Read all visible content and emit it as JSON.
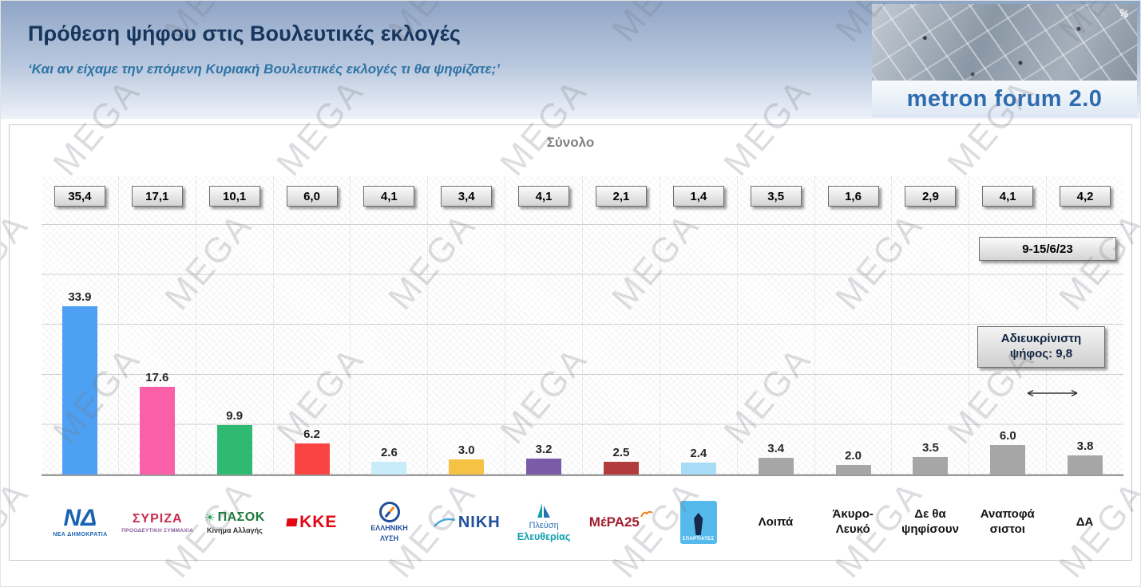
{
  "header": {
    "title": "Πρόθεση ψήφου στις Βουλευτικές εκλογές",
    "subtitle": "‘Και αν είχαμε την επόμενη Κυριακή Βουλευτικές εκλογές τι θα ψηφίζατε;’",
    "brand": "metron forum 2.0",
    "percent_mark": "%"
  },
  "watermark": {
    "text": "MEGA"
  },
  "chart": {
    "title": "Σύνολο",
    "date_box": "9-15/6/23",
    "undecided_line1": "Αδιευκρίνιστη",
    "undecided_line2": "ψήφος: 9,8"
  },
  "chart_data": {
    "type": "bar",
    "title": "Σύνολο",
    "survey_period": "9-15/6/23",
    "note": "Αδιευκρίνιστη ψήφος: 9,8",
    "categories": [
      "ΝΕΑ ΔΗΜΟΚΡΑΤΙΑ",
      "ΣΥΡΙΖΑ",
      "ΠΑΣΟΚ",
      "ΚΚΕ",
      "ΕΛΛΗΝΙΚΗ ΛΥΣΗ",
      "ΝΙΚΗ",
      "ΠΛΕΥΣΗ ΕΛΕΥΘΕΡΙΑΣ",
      "ΜέΡΑ25",
      "ΣΠΑΡΤΙΑΤΕΣ",
      "Λοιπά",
      "Άκυρο-Λευκό",
      "Δε θα ψηφίσουν",
      "Αναποφάσιστοι",
      "ΔΑ"
    ],
    "series": [
      {
        "name": "top_boxes",
        "values": [
          35.4,
          17.1,
          10.1,
          6.0,
          4.1,
          3.4,
          4.1,
          2.1,
          1.4,
          3.5,
          1.6,
          2.9,
          4.1,
          4.2
        ],
        "labels": [
          "35,4",
          "17,1",
          "10,1",
          "6,0",
          "4,1",
          "3,4",
          "4,1",
          "2,1",
          "1,4",
          "3,5",
          "1,6",
          "2,9",
          "4,1",
          "4,2"
        ]
      },
      {
        "name": "bars",
        "values": [
          33.9,
          17.6,
          9.9,
          6.2,
          2.6,
          3.0,
          3.2,
          2.5,
          2.4,
          3.4,
          2.0,
          3.5,
          6.0,
          3.8
        ],
        "labels": [
          "33.9",
          "17.6",
          "9.9",
          "6.2",
          "2.6",
          "3.0",
          "3.2",
          "2.5",
          "2.4",
          "3.4",
          "2.0",
          "3.5",
          "6.0",
          "3.8"
        ]
      }
    ],
    "bar_colors": [
      "#4da0f2",
      "#fa60a7",
      "#2eba70",
      "#fa4343",
      "#c9ecfa",
      "#f5c243",
      "#7b5ba8",
      "#b23b3b",
      "#a8dcf6",
      "#a6a6a6",
      "#a6a6a6",
      "#a6a6a6",
      "#a6a6a6",
      "#a6a6a6"
    ],
    "ylim": [
      0,
      60
    ],
    "grid": "horizontal",
    "legend": "none"
  },
  "parties": [
    {
      "short": "ΝΔ",
      "sub": "ΝΕΑ ΔΗΜΟΚΡΑΤΙΑ"
    },
    {
      "short": "ΣΥΡΙΖΑ",
      "sub": "ΠΡΟΟΔΕΥΤΙΚΗ ΣΥΜΜΑΧΙΑ"
    },
    {
      "short": "ΠΑΣΟΚ",
      "sub": "Κίνημα Αλλαγής"
    },
    {
      "short": "ΚΚΕ"
    },
    {
      "line1": "ΕΛΛΗΝΙΚΗ",
      "line2": "ΛΥΣΗ"
    },
    {
      "short": "ΝΙΚΗ"
    },
    {
      "line1": "Πλεύση",
      "line2": "Ελευθερίας"
    },
    {
      "short": "ΜέΡΑ25"
    },
    {
      "short": "ΣΠΑΡΤΙΑΤΕΣ"
    },
    {
      "label": "Λοιπά"
    },
    {
      "label": "Άκυρο-Λευκό"
    },
    {
      "label": "Δε θα ψηφίσουν"
    },
    {
      "label": "Αναποφάσιστοι"
    },
    {
      "label": "ΔΑ"
    }
  ]
}
